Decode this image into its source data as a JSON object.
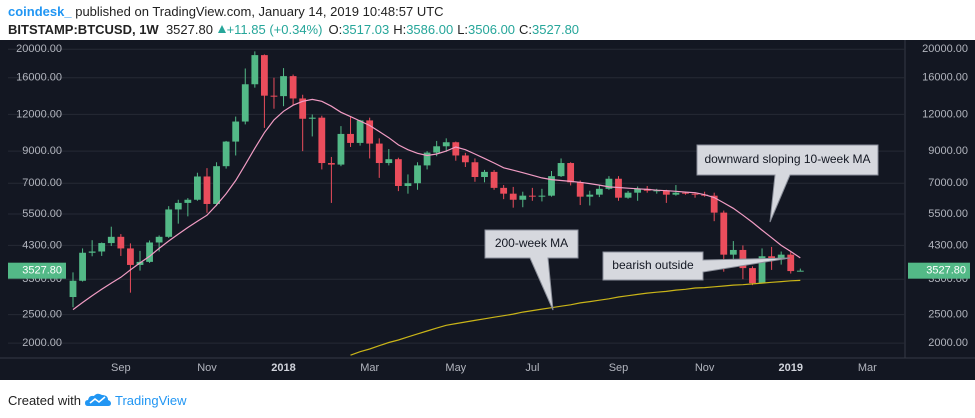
{
  "header": {
    "author": "coindesk_",
    "published": "published on TradingView.com, January 14, 2019 10:48:57 UTC",
    "symbol": "BITSTAMP:BTCUSD, 1W",
    "last": "3527.80",
    "change": "+11.85 (+0.34%)",
    "ohlc": [
      {
        "label": "O:",
        "value": "3517.03"
      },
      {
        "label": "H:",
        "value": "3586.00"
      },
      {
        "label": "L:",
        "value": "3506.00"
      },
      {
        "label": "C:",
        "value": "3527.80"
      }
    ]
  },
  "chart_data": {
    "type": "candlestick",
    "log_scale": true,
    "grid": true,
    "up_color": "#53b987",
    "down_color": "#eb4d5c",
    "categories": [
      null,
      null,
      null,
      null,
      null,
      "Sep",
      null,
      null,
      null,
      null,
      null,
      null,
      null,
      null,
      "Nov",
      null,
      null,
      null,
      null,
      null,
      null,
      null,
      "2018",
      null,
      null,
      null,
      null,
      null,
      null,
      null,
      null,
      "Mar",
      null,
      null,
      null,
      null,
      null,
      null,
      null,
      null,
      "May",
      null,
      null,
      null,
      null,
      null,
      null,
      null,
      "Jul",
      null,
      null,
      null,
      null,
      null,
      null,
      null,
      null,
      "Sep",
      null,
      null,
      null,
      null,
      null,
      null,
      null,
      null,
      "Nov",
      null,
      null,
      null,
      null,
      null,
      null,
      null,
      null,
      "2019",
      null,
      null,
      null,
      null,
      null,
      null,
      null,
      "Mar",
      null,
      null,
      null
    ],
    "open": [
      2870,
      3260,
      4060,
      4100,
      4380,
      4600,
      4200,
      3690,
      3780,
      4400,
      4600,
      5700,
      6000,
      6150,
      7380,
      5950,
      8000,
      9700,
      11350,
      15200,
      19100,
      13900,
      13850,
      16200,
      13600,
      11600,
      11700,
      8200,
      8100,
      10300,
      9600,
      11450,
      9550,
      8200,
      8450,
      6850,
      7000,
      8050,
      8900,
      9350,
      9650,
      8700,
      8250,
      7350,
      7650,
      6750,
      6450,
      6150,
      6350,
      6300,
      6350,
      7400,
      8200,
      7050,
      6300,
      6400,
      6700,
      7250,
      6250,
      6500,
      6700,
      6600,
      6620,
      6400,
      6500,
      6450,
      6400,
      6350,
      5560,
      4000,
      4150,
      3600,
      3200,
      3950,
      3850,
      4000,
      3517.03,
      null,
      null,
      null,
      null,
      null,
      null,
      null,
      null,
      null,
      null
    ],
    "high": [
      3480,
      4200,
      4480,
      4400,
      4980,
      4700,
      4370,
      4120,
      4470,
      4650,
      5850,
      6150,
      6230,
      7600,
      7880,
      8250,
      9750,
      11800,
      17200,
      19666,
      19200,
      16000,
      17250,
      16400,
      14000,
      12000,
      11880,
      8600,
      10950,
      11750,
      11500,
      11700,
      9950,
      9150,
      8550,
      7500,
      8250,
      9000,
      9750,
      9950,
      9700,
      8880,
      8500,
      7770,
      7760,
      6900,
      6800,
      6550,
      6750,
      6700,
      7700,
      8500,
      8250,
      7150,
      6600,
      6900,
      7400,
      7400,
      6590,
      6820,
      6850,
      6700,
      6650,
      6900,
      6550,
      6500,
      6550,
      6500,
      5650,
      4450,
      4300,
      3650,
      4200,
      4250,
      4100,
      4080,
      3586,
      null,
      null,
      null,
      null,
      null,
      null,
      null,
      null,
      null,
      null
    ],
    "low": [
      2650,
      3240,
      3950,
      3960,
      4280,
      3960,
      2970,
      3530,
      3750,
      4100,
      4560,
      5100,
      5400,
      6100,
      5550,
      5850,
      7850,
      8700,
      11100,
      14800,
      10800,
      12550,
      12800,
      12900,
      9000,
      10100,
      7800,
      6000,
      8000,
      9300,
      9400,
      8500,
      7300,
      8050,
      6580,
      6450,
      6650,
      7800,
      8650,
      8950,
      8350,
      7950,
      7080,
      7050,
      6650,
      6180,
      5780,
      5800,
      6100,
      6070,
      6300,
      7350,
      6880,
      5900,
      5880,
      6280,
      6650,
      6100,
      6200,
      6100,
      6500,
      6450,
      6000,
      6350,
      6400,
      6250,
      6300,
      5200,
      3500,
      3650,
      3300,
      3150,
      3200,
      3550,
      3700,
      3450,
      3506,
      null,
      null,
      null,
      null,
      null,
      null,
      null,
      null,
      null,
      null
    ],
    "close": [
      3260,
      4060,
      4100,
      4380,
      4600,
      4200,
      3690,
      3780,
      4400,
      4600,
      5700,
      6000,
      6150,
      7380,
      5950,
      8000,
      9700,
      11350,
      15200,
      19100,
      13900,
      13850,
      16200,
      13600,
      11600,
      11700,
      8200,
      8100,
      10300,
      9600,
      11450,
      9550,
      8200,
      8450,
      6850,
      7000,
      8050,
      8900,
      9350,
      9650,
      8700,
      8250,
      7350,
      7650,
      6750,
      6450,
      6150,
      6350,
      6300,
      6350,
      7400,
      8200,
      7050,
      6300,
      6400,
      6700,
      7250,
      6250,
      6500,
      6700,
      6600,
      6620,
      6400,
      6500,
      6450,
      6400,
      6350,
      5560,
      4000,
      4150,
      3600,
      3200,
      3950,
      3850,
      4000,
      3517.03,
      3527.8,
      null,
      null,
      null,
      null,
      null,
      null,
      null,
      null,
      null,
      null
    ],
    "overlays": [
      {
        "color": "#f19cc4",
        "values": [
          2600,
          2750,
          2900,
          3050,
          3200,
          3350,
          3550,
          3750,
          3950,
          4200,
          4450,
          4700,
          4950,
          5200,
          5450,
          5900,
          6450,
          7150,
          8100,
          9200,
          10400,
          11500,
          12300,
          12900,
          13300,
          13500,
          13300,
          12800,
          12200,
          11800,
          11400,
          11000,
          10500,
          10000,
          9450,
          9100,
          8850,
          8700,
          8800,
          9000,
          9300,
          9100,
          8800,
          8500,
          8200,
          7900,
          7750,
          7600,
          7450,
          7300,
          7200,
          7150,
          7100,
          7050,
          6980,
          6900,
          6800,
          6770,
          6730,
          6700,
          6670,
          6630,
          6600,
          6570,
          6530,
          6500,
          6400,
          6260,
          6000,
          5750,
          5450,
          5150,
          4850,
          4570,
          4300,
          4100,
          3900,
          null,
          null,
          null,
          null,
          null,
          null,
          null,
          null,
          null,
          null
        ]
      },
      {
        "color": "#c9b418",
        "values": [
          null,
          null,
          null,
          null,
          null,
          null,
          null,
          null,
          null,
          null,
          null,
          null,
          null,
          null,
          null,
          null,
          null,
          null,
          null,
          null,
          null,
          null,
          null,
          null,
          null,
          null,
          null,
          null,
          null,
          1820,
          1870,
          1910,
          1960,
          2010,
          2050,
          2100,
          2150,
          2200,
          2250,
          2300,
          2330,
          2360,
          2390,
          2420,
          2450,
          2480,
          2510,
          2550,
          2580,
          2610,
          2640,
          2670,
          2700,
          2740,
          2770,
          2800,
          2830,
          2870,
          2900,
          2930,
          2960,
          2980,
          3000,
          3030,
          3050,
          3080,
          3090,
          3110,
          3130,
          3150,
          3160,
          3180,
          3200,
          3220,
          3240,
          3260,
          3270,
          null,
          null,
          null,
          null,
          null,
          null,
          null,
          null,
          null,
          null
        ]
      }
    ],
    "ylim": [
      1780,
      21500
    ],
    "yticks": [
      {
        "value": 2000,
        "label": "2000.00"
      },
      {
        "value": 2500,
        "label": "2500.00"
      },
      {
        "value": 3300,
        "label": "3300.00"
      },
      {
        "value": 4300,
        "label": "4300.00"
      },
      {
        "value": 5500,
        "label": "5500.00"
      },
      {
        "value": 7000,
        "label": "7000.00"
      },
      {
        "value": 9000,
        "label": "9000.00"
      },
      {
        "value": 12000,
        "label": "12000.00"
      },
      {
        "value": 16000,
        "label": "16000.00"
      },
      {
        "value": 20000,
        "label": "20000.00"
      }
    ],
    "price_label": {
      "value": 3527.8,
      "label": "3527.80"
    },
    "annotations": [
      "downward sloping 10-week MA",
      "200-week MA",
      "bearish outside"
    ]
  },
  "footer": {
    "prefix": "Created with",
    "brand": "TradingView"
  }
}
